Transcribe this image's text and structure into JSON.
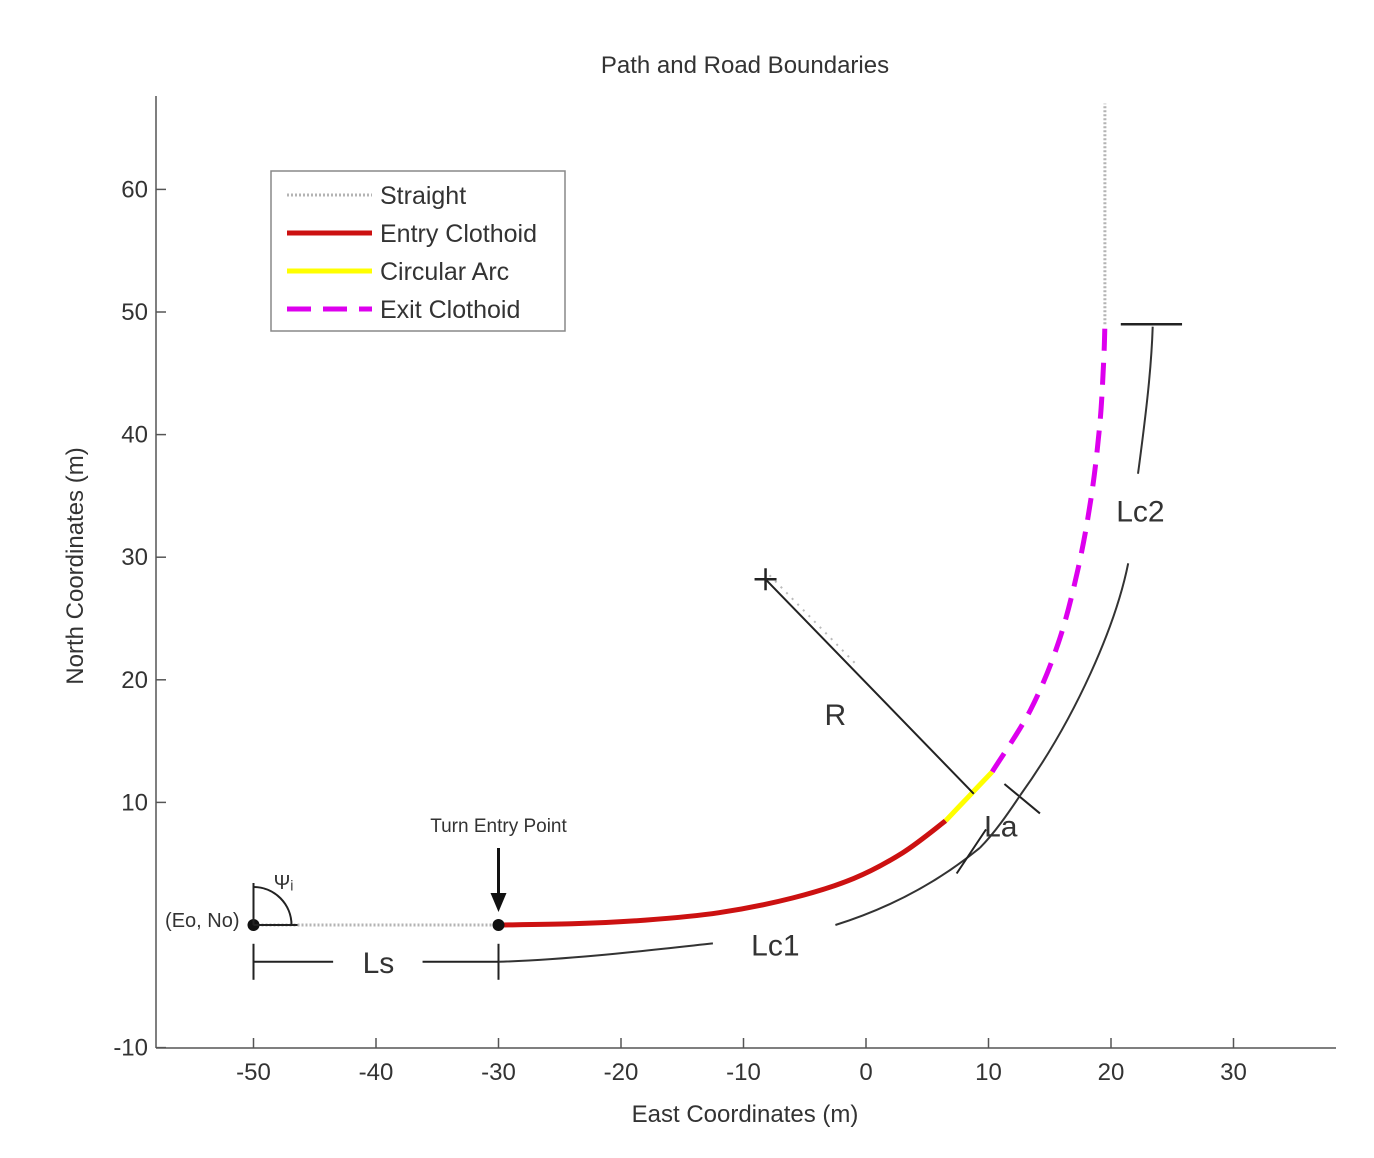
{
  "chart_data": {
    "type": "line",
    "title": "Path and Road Boundaries",
    "xlabel": "East Coordinates (m)",
    "ylabel": "North Coordinates (m)",
    "xlim": [
      -58,
      38
    ],
    "ylim": [
      -10,
      68
    ],
    "xticks": [
      -50,
      -40,
      -30,
      -20,
      -10,
      0,
      10,
      20,
      30
    ],
    "yticks": [
      -10,
      10,
      20,
      30,
      40,
      50,
      60
    ],
    "grid": false,
    "legend_position": "top-left",
    "series": [
      {
        "name": "Straight",
        "color": "#b4b4b4",
        "style": "dotted",
        "points": [
          [
            -50,
            0
          ],
          [
            -30,
            0
          ]
        ],
        "points2": [
          [
            19.5,
            49
          ],
          [
            19.5,
            67
          ]
        ]
      },
      {
        "name": "Entry Clothoid",
        "color": "#cc1111",
        "style": "solid",
        "points": [
          [
            -30,
            0
          ],
          [
            -24,
            0.1
          ],
          [
            -18,
            0.4
          ],
          [
            -12,
            1.0
          ],
          [
            -6,
            2.2
          ],
          [
            -1,
            3.8
          ],
          [
            3,
            5.9
          ],
          [
            6.5,
            8.5
          ]
        ]
      },
      {
        "name": "Circular Arc",
        "color": "#ffff00",
        "style": "solid",
        "points": [
          [
            6.5,
            8.5
          ],
          [
            8.4,
            10.5
          ],
          [
            10.3,
            12.5
          ]
        ]
      },
      {
        "name": "Exit Clothoid",
        "color": "#dd00ee",
        "style": "dashed",
        "points": [
          [
            10.3,
            12.5
          ],
          [
            13.4,
            17.5
          ],
          [
            15.7,
            23
          ],
          [
            17.3,
            29
          ],
          [
            18.4,
            35
          ],
          [
            19.1,
            41
          ],
          [
            19.4,
            46
          ],
          [
            19.5,
            49
          ]
        ]
      }
    ],
    "annotations": {
      "turn_entry": "Turn Entry Point",
      "origin": "(Eo, No)",
      "psi": "Ψᵢ",
      "ls": "Ls",
      "lc1": "Lc1",
      "la": "La",
      "lc2": "Lc2",
      "r": "R",
      "center_marker": "+"
    }
  }
}
